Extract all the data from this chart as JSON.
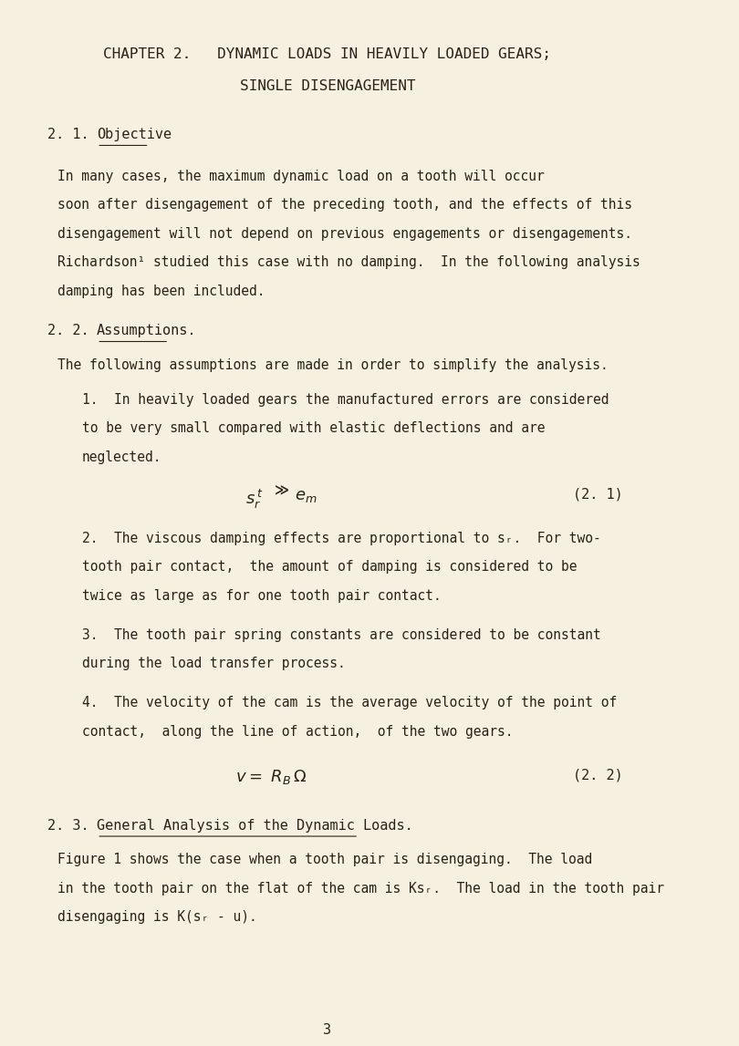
{
  "bg_color": "#f5f0e0",
  "text_color": "#2a2218",
  "page_number": "3",
  "title_line1": "CHAPTER 2.   DYNAMIC LOADS IN HEAVILY LOADED GEARS;",
  "title_line2": "SINGLE DISENGAGEMENT",
  "section_21_label": "2. 1.",
  "section_21_title": "Objective",
  "section_21_body": [
    "In many cases, the maximum dynamic load on a tooth will occur",
    "soon after disengagement of the preceding tooth, and the effects of this",
    "disengagement will not depend on previous engagements or disengagements.",
    "Richardson¹ studied this case with no damping.  In the following analysis",
    "damping has been included."
  ],
  "section_22_label": "2. 2.",
  "section_22_title": "Assumptions.",
  "section_22_intro": "The following assumptions are made in order to simplify the analysis.",
  "assumptions": [
    [
      "1.  In heavily loaded gears the manufactured errors are considered",
      "to be very small compared with elastic deflections and are",
      "neglected."
    ],
    [
      "2.  The viscous damping effects are proportional to sᵣ.  For two-",
      "tooth pair contact,  the amount of damping is considered to be",
      "twice as large as for one tooth pair contact."
    ],
    [
      "3.  The tooth pair spring constants are considered to be constant",
      "during the load transfer process."
    ],
    [
      "4.  The velocity of the cam is the average velocity of the point of",
      "contact,  along the line of action,  of the two gears."
    ]
  ],
  "section_23_label": "2. 3.",
  "section_23_title": "General Analysis of the Dynamic Loads.",
  "section_23_body": [
    "Figure 1 shows the case when a tooth pair is disengaging.  The load",
    "in the tooth pair on the flat of the cam is Ksᵣ.  The load in the tooth pair",
    "disengaging is K(sᵣ - u)."
  ]
}
